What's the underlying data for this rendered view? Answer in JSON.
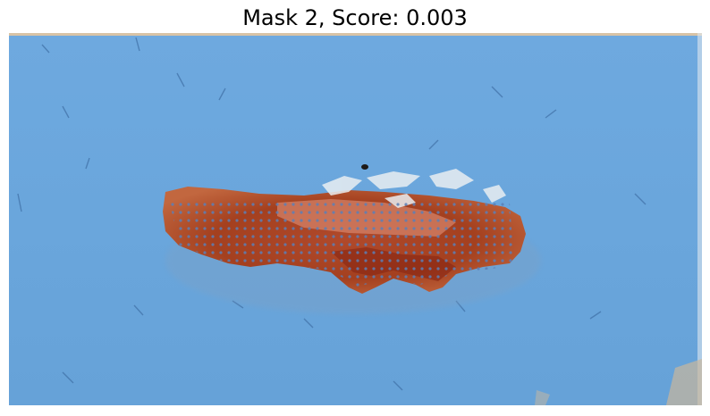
{
  "figure": {
    "title": "Mask 2, Score: 0.003"
  },
  "image": {
    "description_icon": "skin-lesion-photo",
    "mask_color": "#6aa6dd",
    "lesion_color": "#a8432a"
  }
}
